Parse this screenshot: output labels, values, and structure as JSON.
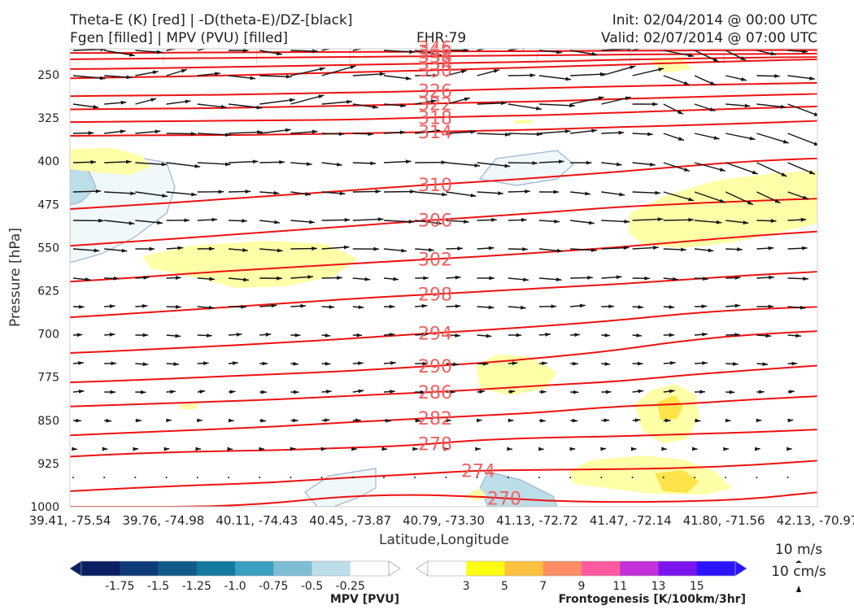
{
  "title": {
    "left_line1": "Theta-E (K) [red] | -D(theta-E)/DZ-[black]",
    "left_line2": "Fgen [filled] | MPV (PVU) [filled]",
    "fhr": "FHR:79",
    "init": "Init: 02/04/2014 @ 00:00 UTC",
    "valid": "Valid: 02/07/2014 @ 07:00 UTC"
  },
  "chart_data": {
    "type": "cross-section",
    "ylabel": "Pressure [hPa]",
    "xlabel": "Latitude,Longitude",
    "yticks": [
      250,
      325,
      400,
      475,
      550,
      625,
      700,
      775,
      850,
      925,
      1000
    ],
    "ylim": [
      1000,
      190
    ],
    "xticks": [
      "39.41, -75.54",
      "39.76, -74.98",
      "40.11, -74.43",
      "40.45, -73.87",
      "40.79, -73.30",
      "41.13, -72.72",
      "41.47, -72.14",
      "41.80, -71.56",
      "42.13, -70.97"
    ],
    "theta_e_contours": [
      {
        "label": "270",
        "p": [
          1000,
          1000,
          1000,
          994,
          982,
          979,
          982,
          990,
          992,
          991,
          987,
          975
        ]
      },
      {
        "label": "274",
        "p": [
          973,
          967,
          962,
          958,
          950,
          944,
          937,
          936,
          935,
          933,
          928,
          920
        ]
      },
      {
        "label": "278",
        "p": [
          913,
          907,
          904,
          902,
          898,
          894,
          884,
          880,
          878,
          874,
          871,
          866
        ]
      },
      {
        "label": "282",
        "p": [
          876,
          871,
          866,
          861,
          854,
          848,
          842,
          836,
          826,
          822,
          814,
          808
        ]
      },
      {
        "label": "286",
        "p": [
          826,
          822,
          818,
          814,
          808,
          803,
          797,
          789,
          783,
          772,
          763,
          755
        ]
      },
      {
        "label": "290",
        "p": [
          784,
          780,
          775,
          770,
          765,
          758,
          751,
          741,
          729,
          712,
          701,
          695
        ]
      },
      {
        "label": "294",
        "p": [
          733,
          728,
          722,
          716,
          709,
          701,
          694,
          686,
          677,
          665,
          657,
          653
        ]
      },
      {
        "label": "298",
        "p": [
          671,
          664,
          656,
          648,
          640,
          633,
          627,
          620,
          614,
          606,
          598,
          592
        ]
      },
      {
        "label": "302",
        "p": [
          609,
          602,
          593,
          586,
          579,
          572,
          566,
          558,
          550,
          540,
          530,
          522
        ]
      },
      {
        "label": "306",
        "p": [
          547,
          539,
          531,
          522,
          514,
          505,
          497,
          489,
          480,
          474,
          469,
          465
        ]
      },
      {
        "label": "310",
        "p": [
          483,
          476,
          468,
          460,
          452,
          443,
          436,
          428,
          419,
          409,
          400,
          395
        ]
      },
      {
        "label": "314",
        "p": [
          356,
          355,
          355,
          354,
          352,
          350,
          347,
          345,
          341,
          338,
          334,
          330
        ]
      },
      {
        "label": "318",
        "p": [
          332,
          331,
          330,
          329,
          328,
          325,
          322,
          320,
          316,
          312,
          308,
          305
        ]
      },
      {
        "label": "322",
        "p": [
          310,
          309,
          308,
          306,
          304,
          301,
          298,
          296,
          292,
          289,
          286,
          283
        ]
      },
      {
        "label": "326",
        "p": [
          287,
          286,
          285,
          283,
          281,
          279,
          276,
          273,
          270,
          268,
          266,
          264
        ]
      },
      {
        "label": "330",
        "p": [
          256,
          254,
          252,
          249,
          246,
          243,
          240,
          236,
          233,
          229,
          226,
          223
        ]
      },
      {
        "label": "334",
        "p": [
          240,
          239,
          237,
          235,
          233,
          231,
          229,
          227,
          224,
          222,
          220,
          219
        ]
      },
      {
        "label": "338",
        "p": [
          223,
          222,
          221,
          220,
          219,
          218,
          217,
          216,
          215,
          214,
          214,
          213
        ]
      },
      {
        "label": "342",
        "p": [
          212,
          212,
          211,
          211,
          210,
          210,
          209,
          209,
          208,
          208,
          207,
          207
        ]
      },
      {
        "label": "346",
        "p": [
          204,
          204,
          204,
          203,
          203,
          203,
          202,
          202,
          202,
          202,
          201,
          201
        ]
      },
      {
        "label": "350",
        "p": [
          198,
          198,
          198,
          197,
          197,
          197,
          197,
          197,
          196,
          196,
          196,
          196
        ]
      }
    ],
    "mpv_colorbar": {
      "label": "MPV [PVU]",
      "ticks": [
        "-1.75",
        "-1.5",
        "-1.25",
        "-1.0",
        "-0.75",
        "-0.5",
        "-0.25"
      ],
      "colors": [
        "#0b1f63",
        "#0e3a78",
        "#115a8b",
        "#14799e",
        "#3a9ec0",
        "#7ebdd4",
        "#bcdee8",
        "#ffffff"
      ]
    },
    "fgen_colorbar": {
      "label": "Frontogenesis [K/100km/3hr]",
      "ticks": [
        "3",
        "5",
        "7",
        "9",
        "11",
        "13",
        "15"
      ],
      "colors": [
        "#ffffff",
        "#ffff14",
        "#ffc13f",
        "#ff8c63",
        "#ff5aa0",
        "#c32fd8",
        "#7c14f0",
        "#2a14ff"
      ]
    },
    "reference_vectors": [
      "10 m/s",
      "10 cm/s"
    ]
  }
}
